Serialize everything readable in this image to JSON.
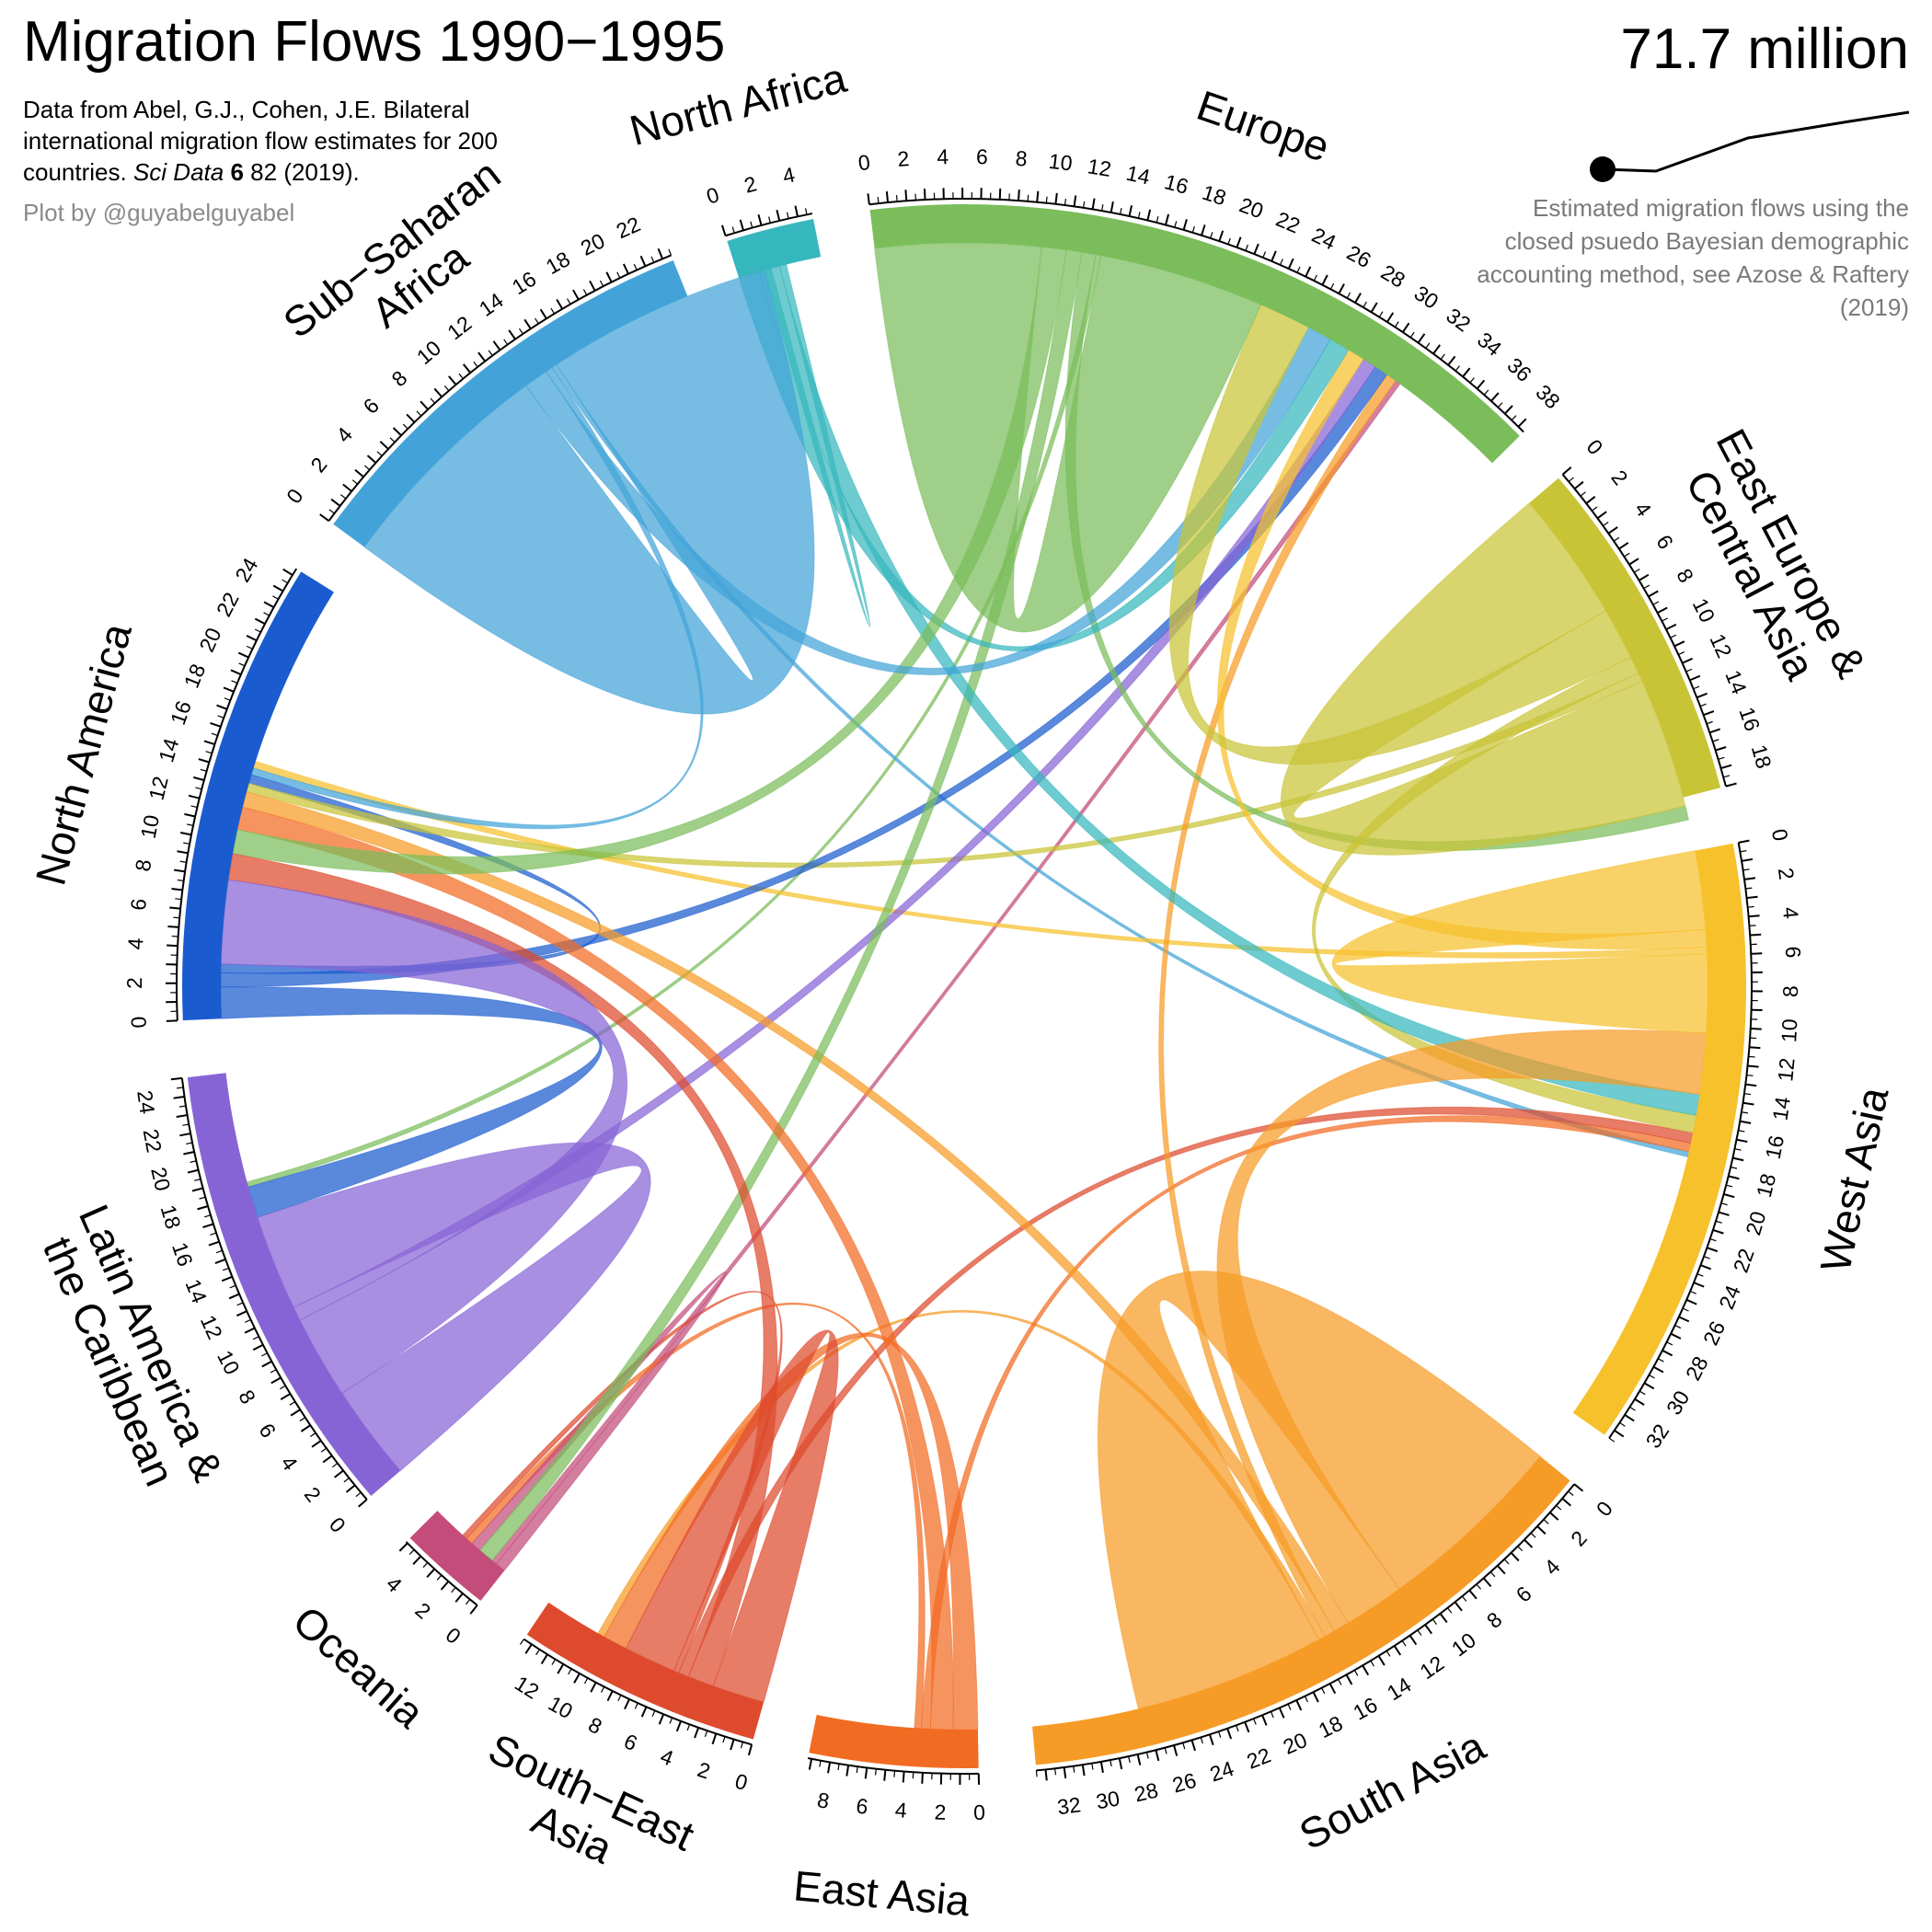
{
  "header": {
    "title": "Migration Flows 1990−1995",
    "citation_pre": "Data from Abel, G.J., Cohen, J.E. Bilateral international migration flow estimates for 200 countries.",
    "citation_journal": "Sci Data",
    "citation_volume": "6",
    "citation_post": "82 (2019).",
    "credit": "Plot by @guyabelguyabel",
    "total": "71.7 million",
    "method_note": "Estimated migration flows using the closed psuedo Bayesian demographic accounting method, see Azose & Raftery (2019)"
  },
  "chart_data": {
    "type": "chord",
    "title": "Migration Flows 1990−1995",
    "total_flow": "71.7 million",
    "units": "millions",
    "regions": [
      {
        "name": "North America",
        "label_lines": [
          "North America"
        ],
        "color": "#1A5CCF",
        "total": 25.4,
        "tick_max": 24
      },
      {
        "name": "Sub-Saharan Africa",
        "label_lines": [
          "Sub−Saharan",
          "Africa"
        ],
        "color": "#43A3D8",
        "total": 23.5,
        "tick_max": 22
      },
      {
        "name": "North Africa",
        "label_lines": [
          "North Africa"
        ],
        "color": "#36B7BD",
        "total": 4.8,
        "tick_max": 4
      },
      {
        "name": "Europe",
        "label_lines": [
          "Europe"
        ],
        "color": "#7ABD5A",
        "total": 38.4,
        "tick_max": 38
      },
      {
        "name": "East Europe & Central Asia",
        "label_lines": [
          "East Europe &",
          "Central Asia"
        ],
        "color": "#C9C436",
        "total": 19.0,
        "tick_max": 18
      },
      {
        "name": "West Asia",
        "label_lines": [
          "West Asia"
        ],
        "color": "#F7C12C",
        "total": 33.5,
        "tick_max": 32
      },
      {
        "name": "South Asia",
        "label_lines": [
          "South Asia"
        ],
        "color": "#F69B25",
        "total": 33.5,
        "tick_max": 32
      },
      {
        "name": "East Asia",
        "label_lines": [
          "East Asia"
        ],
        "color": "#F26B22",
        "total": 9.2,
        "tick_max": 8
      },
      {
        "name": "South-East Asia",
        "label_lines": [
          "South−East",
          "Asia"
        ],
        "color": "#DE4A2D",
        "total": 13.5,
        "tick_max": 12
      },
      {
        "name": "Oceania",
        "label_lines": [
          "Oceania"
        ],
        "color": "#C44C7A",
        "total": 5.1,
        "tick_max": 4
      },
      {
        "name": "Latin America & the Caribbean",
        "label_lines": [
          "Latin America &",
          "the Caribbean"
        ],
        "color": "#8764D6",
        "total": 25.0,
        "tick_max": 24
      }
    ],
    "flows": [
      {
        "from": "Sub-Saharan Africa",
        "to": "Sub-Saharan Africa",
        "value": 13.0
      },
      {
        "from": "Sub-Saharan Africa",
        "to": "Europe",
        "value": 1.4
      },
      {
        "from": "Sub-Saharan Africa",
        "to": "North America",
        "value": 0.4
      },
      {
        "from": "Sub-Saharan Africa",
        "to": "West Asia",
        "value": 0.3
      },
      {
        "from": "North Africa",
        "to": "Europe",
        "value": 1.2
      },
      {
        "from": "North Africa",
        "to": "West Asia",
        "value": 1.2
      },
      {
        "from": "North Africa",
        "to": "Sub-Saharan Africa",
        "value": 0.4
      },
      {
        "from": "Europe",
        "to": "Europe",
        "value": 9.5
      },
      {
        "from": "Europe",
        "to": "North America",
        "value": 1.4
      },
      {
        "from": "Europe",
        "to": "Oceania",
        "value": 0.9
      },
      {
        "from": "Europe",
        "to": "East Europe & Central Asia",
        "value": 0.8
      },
      {
        "from": "Europe",
        "to": "Latin America & the Caribbean",
        "value": 0.3
      },
      {
        "from": "East Europe & Central Asia",
        "to": "East Europe & Central Asia",
        "value": 7.5
      },
      {
        "from": "East Europe & Central Asia",
        "to": "Europe",
        "value": 3.0
      },
      {
        "from": "East Europe & Central Asia",
        "to": "West Asia",
        "value": 1.0
      },
      {
        "from": "East Europe & Central Asia",
        "to": "North America",
        "value": 0.5
      },
      {
        "from": "West Asia",
        "to": "West Asia",
        "value": 4.5
      },
      {
        "from": "West Asia",
        "to": "Europe",
        "value": 1.0
      },
      {
        "from": "West Asia",
        "to": "North America",
        "value": 0.4
      },
      {
        "from": "South Asia",
        "to": "South Asia",
        "value": 11.0
      },
      {
        "from": "South Asia",
        "to": "West Asia",
        "value": 3.5
      },
      {
        "from": "South Asia",
        "to": "North America",
        "value": 0.9
      },
      {
        "from": "South Asia",
        "to": "Europe",
        "value": 0.6
      },
      {
        "from": "South Asia",
        "to": "South-East Asia",
        "value": 0.4
      },
      {
        "from": "East Asia",
        "to": "North America",
        "value": 1.3
      },
      {
        "from": "East Asia",
        "to": "South-East Asia",
        "value": 1.4
      },
      {
        "from": "East Asia",
        "to": "West Asia",
        "value": 0.5
      },
      {
        "from": "East Asia",
        "to": "Oceania",
        "value": 0.4
      },
      {
        "from": "South-East Asia",
        "to": "South-East Asia",
        "value": 3.0
      },
      {
        "from": "South-East Asia",
        "to": "North America",
        "value": 1.5
      },
      {
        "from": "South-East Asia",
        "to": "West Asia",
        "value": 0.6
      },
      {
        "from": "South-East Asia",
        "to": "Oceania",
        "value": 0.3
      },
      {
        "from": "Oceania",
        "to": "Oceania",
        "value": 0.6
      },
      {
        "from": "Oceania",
        "to": "Europe",
        "value": 0.3
      },
      {
        "from": "Latin America & the Caribbean",
        "to": "Latin America & the Caribbean",
        "value": 5.5
      },
      {
        "from": "Latin America & the Caribbean",
        "to": "North America",
        "value": 4.8
      },
      {
        "from": "Latin America & the Caribbean",
        "to": "Europe",
        "value": 0.8
      },
      {
        "from": "North America",
        "to": "Latin America & the Caribbean",
        "value": 1.8
      },
      {
        "from": "North America",
        "to": "Europe",
        "value": 0.8
      },
      {
        "from": "North America",
        "to": "North America",
        "value": 0.5
      }
    ]
  }
}
